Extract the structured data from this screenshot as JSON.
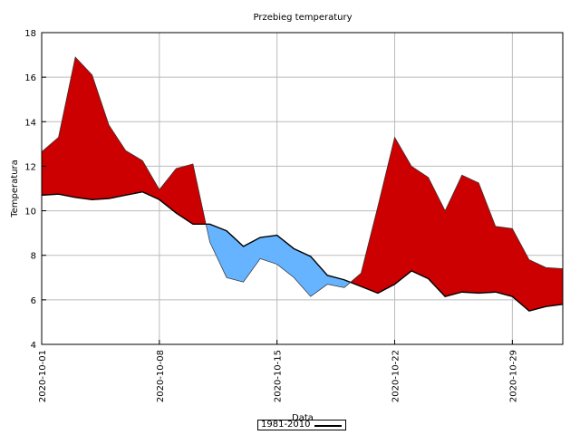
{
  "chart_data": {
    "type": "area",
    "title": "Przebieg temperatury",
    "xlabel": "Data",
    "ylabel": "Temperatura",
    "ylim": [
      4,
      18
    ],
    "yticks": [
      4,
      6,
      8,
      10,
      12,
      14,
      16,
      18
    ],
    "xlim": [
      "2020-10-01",
      "2020-11-01"
    ],
    "xticks": [
      "2020-10-01",
      "2020-10-08",
      "2020-10-15",
      "2020-10-22",
      "2020-10-29"
    ],
    "grid": true,
    "legend_position": "bottom-center",
    "x": [
      "2020-10-01",
      "2020-10-02",
      "2020-10-03",
      "2020-10-04",
      "2020-10-05",
      "2020-10-06",
      "2020-10-07",
      "2020-10-08",
      "2020-10-09",
      "2020-10-10",
      "2020-10-11",
      "2020-10-12",
      "2020-10-13",
      "2020-10-14",
      "2020-10-15",
      "2020-10-16",
      "2020-10-17",
      "2020-10-18",
      "2020-10-19",
      "2020-10-20",
      "2020-10-21",
      "2020-10-22",
      "2020-10-23",
      "2020-10-24",
      "2020-10-25",
      "2020-10-26",
      "2020-10-27",
      "2020-10-28",
      "2020-10-29",
      "2020-10-30",
      "2020-10-31",
      "2020-11-01"
    ],
    "series": [
      {
        "name": "1981-2010",
        "values": [
          10.7,
          10.75,
          10.6,
          10.5,
          10.55,
          10.7,
          10.85,
          10.5,
          9.9,
          9.4,
          9.4,
          9.1,
          8.4,
          8.8,
          8.9,
          8.3,
          7.95,
          7.1,
          6.9,
          6.6,
          6.3,
          6.7,
          7.3,
          6.95,
          6.15,
          6.35,
          6.3,
          6.35,
          6.15,
          5.5,
          5.7,
          5.8
        ]
      },
      {
        "values": [
          12.65,
          13.3,
          16.9,
          16.1,
          13.85,
          12.7,
          12.25,
          10.95,
          11.9,
          12.1,
          8.6,
          7.0,
          6.8,
          7.85,
          7.6,
          7.0,
          6.15,
          6.7,
          6.55,
          7.2,
          10.2,
          13.3,
          12.0,
          11.5,
          10.0,
          11.6,
          11.25,
          9.3,
          9.2,
          7.8,
          7.45,
          7.4
        ]
      }
    ],
    "colors": {
      "above": "#cc0000",
      "below": "#66b3ff",
      "line": "#000000",
      "grid": "#bbbbbb"
    }
  }
}
